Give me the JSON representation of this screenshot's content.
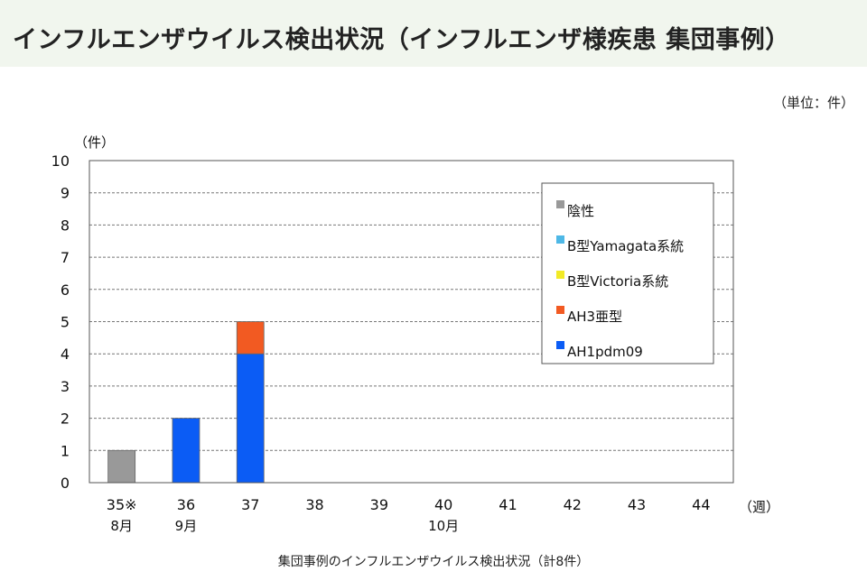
{
  "page": {
    "title": "インフルエンザウイルス検出状況（インフルエンザ様疾患 集団事例）",
    "unit_note": "（単位：件）",
    "caption": "集団事例のインフルエンザウイルス検出状況（計8件）"
  },
  "chart_data": {
    "type": "bar",
    "stacked": true,
    "categories": [
      "35※",
      "36",
      "37",
      "38",
      "39",
      "40",
      "41",
      "42",
      "43",
      "44"
    ],
    "category_sublabels": [
      "8月",
      "9月",
      "",
      "",
      "",
      "10月",
      "",
      "",
      "",
      ""
    ],
    "series": [
      {
        "name": "陰性",
        "color": "#999999",
        "values": [
          1,
          0,
          0,
          0,
          0,
          0,
          0,
          0,
          0,
          0
        ]
      },
      {
        "name": "B型Yamagata系統",
        "color": "#4eb8e6",
        "values": [
          0,
          0,
          0,
          0,
          0,
          0,
          0,
          0,
          0,
          0
        ]
      },
      {
        "name": "B型Victoria系統",
        "color": "#f2ea26",
        "values": [
          0,
          0,
          0,
          0,
          0,
          0,
          0,
          0,
          0,
          0
        ]
      },
      {
        "name": "AH3亜型",
        "color": "#f25a22",
        "values": [
          0,
          0,
          1,
          0,
          0,
          0,
          0,
          0,
          0,
          0
        ]
      },
      {
        "name": "AH1pdm09",
        "color": "#0b5cf5",
        "values": [
          0,
          2,
          4,
          0,
          0,
          0,
          0,
          0,
          0,
          0
        ]
      }
    ],
    "stack_order_bottom_to_top": [
      "AH1pdm09",
      "AH3亜型",
      "B型Victoria系統",
      "B型Yamagata系統",
      "陰性"
    ],
    "legend_order": [
      "陰性",
      "B型Yamagata系統",
      "B型Victoria系統",
      "AH3亜型",
      "AH1pdm09"
    ],
    "ylabel": "（件）",
    "xlabel": "（週）",
    "ylim": [
      0,
      10
    ],
    "yticks": [
      0,
      1,
      2,
      3,
      4,
      5,
      6,
      7,
      8,
      9,
      10
    ],
    "grid": true,
    "grid_style": "dashed",
    "legend_position": "upper-right"
  }
}
